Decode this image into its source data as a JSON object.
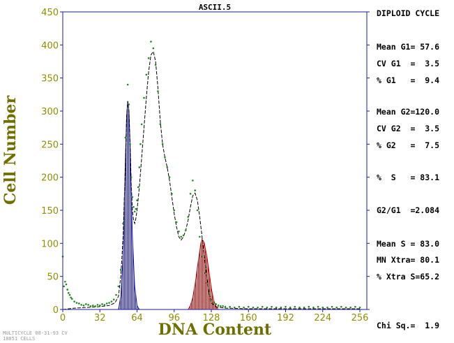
{
  "chart_data": {
    "type": "histogram",
    "title": "ASCII.5",
    "xlabel": "DNA Content",
    "ylabel": "Cell Number",
    "xlim": [
      0,
      262
    ],
    "ylim": [
      0,
      450
    ],
    "x_ticks": [
      0,
      32,
      64,
      96,
      128,
      160,
      192,
      224,
      256
    ],
    "y_ticks": [
      0,
      50,
      100,
      150,
      200,
      250,
      300,
      350,
      400,
      450
    ],
    "grid": false,
    "colors": {
      "axis": "#1c1c9a",
      "tick_label": "#8f8f00",
      "axis_label": "#6f6f00",
      "data_points": "#208a20",
      "fit_line": "#000000",
      "g1_peak": "#2020a0",
      "g2_peak": "#b01010"
    },
    "series": [
      {
        "kind": "scatter",
        "x": [
          0,
          1,
          2,
          3,
          4,
          5,
          6,
          7,
          8,
          10,
          12,
          14,
          16,
          18,
          20,
          22,
          24,
          26,
          28,
          30,
          32,
          34,
          36,
          38,
          40,
          42,
          44,
          46,
          48,
          50,
          52,
          54,
          56,
          57,
          58,
          59,
          60,
          61,
          62,
          63,
          64,
          65,
          66,
          67,
          68,
          70,
          72,
          74,
          76,
          78,
          80,
          82,
          84,
          86,
          88,
          90,
          92,
          94,
          96,
          98,
          100,
          102,
          104,
          106,
          108,
          110,
          112,
          114,
          116,
          118,
          120,
          122,
          124,
          126,
          128,
          130,
          132,
          134,
          136,
          138,
          140,
          144,
          148,
          152,
          156,
          160,
          164,
          168,
          172,
          176,
          180,
          184,
          188,
          192,
          196,
          200,
          204,
          208,
          212,
          216,
          220,
          224,
          228,
          232,
          236,
          240,
          244,
          248,
          252,
          256
        ],
        "y": [
          80,
          35,
          42,
          38,
          30,
          25,
          22,
          18,
          16,
          12,
          10,
          9,
          7,
          6,
          8,
          7,
          5,
          6,
          5,
          7,
          6,
          8,
          7,
          9,
          10,
          12,
          15,
          22,
          35,
          60,
          130,
          260,
          340,
          310,
          250,
          200,
          170,
          155,
          148,
          152,
          165,
          185,
          215,
          250,
          280,
          320,
          355,
          380,
          405,
          395,
          370,
          330,
          280,
          250,
          230,
          215,
          200,
          175,
          150,
          132,
          118,
          110,
          112,
          120,
          140,
          175,
          195,
          180,
          150,
          110,
          80,
          55,
          40,
          25,
          15,
          10,
          8,
          6,
          5,
          5,
          4,
          4,
          3,
          4,
          3,
          4,
          3,
          3,
          4,
          3,
          4,
          3,
          3,
          4,
          3,
          4,
          3,
          3,
          4,
          3,
          4,
          3,
          3,
          4,
          3,
          4,
          3,
          3,
          4,
          3
        ]
      },
      {
        "kind": "fit-line",
        "x": [
          0,
          10,
          20,
          30,
          40,
          45,
          48,
          50,
          52,
          54,
          55,
          56,
          57,
          58,
          59,
          60,
          61,
          62,
          63,
          64,
          66,
          68,
          70,
          72,
          74,
          76,
          78,
          80,
          82,
          84,
          86,
          88,
          90,
          92,
          94,
          96,
          98,
          100,
          102,
          104,
          106,
          108,
          110,
          112,
          114,
          116,
          118,
          120,
          122,
          124,
          126,
          128,
          132,
          140,
          160,
          192,
          224,
          256
        ],
        "y": [
          0,
          2,
          3,
          4,
          6,
          10,
          20,
          50,
          110,
          220,
          290,
          315,
          300,
          250,
          190,
          150,
          135,
          130,
          138,
          150,
          185,
          230,
          275,
          320,
          360,
          385,
          390,
          375,
          335,
          285,
          250,
          230,
          215,
          195,
          170,
          145,
          125,
          110,
          105,
          110,
          120,
          135,
          155,
          172,
          176,
          165,
          140,
          110,
          80,
          50,
          25,
          10,
          4,
          2,
          1,
          1,
          1,
          1
        ]
      },
      {
        "kind": "g1-peak-fill",
        "x": [
          48,
          50,
          52,
          53,
          54,
          55,
          56,
          57,
          58,
          59,
          60,
          62,
          64,
          66
        ],
        "y": [
          0,
          20,
          80,
          160,
          230,
          290,
          315,
          300,
          250,
          180,
          110,
          35,
          6,
          0
        ]
      },
      {
        "kind": "g2-peak-fill",
        "x": [
          108,
          110,
          112,
          114,
          116,
          118,
          119,
          120,
          121,
          122,
          124,
          126,
          128,
          130,
          132,
          134
        ],
        "y": [
          0,
          6,
          18,
          38,
          64,
          88,
          100,
          106,
          104,
          100,
          82,
          58,
          32,
          14,
          5,
          0
        ]
      }
    ]
  },
  "stats_panel": {
    "heading": "DIPLOID CYCLE",
    "lines": [
      "Mean G1= 57.6",
      "CV G1  =  3.5",
      "% G1   =  9.4",
      "Mean G2=120.0",
      "CV G2  =  3.5",
      "% G2   =  7.5",
      "%  S   = 83.1",
      "G2/G1  =2.084",
      "Mean S = 83.0",
      "MN Xtra= 80.1",
      "% Xtra S=65.2",
      "Chi Sq.=  1.9"
    ]
  },
  "footer": {
    "line1": "MULTICYCLE 08-31-93 CV",
    "line2": "18851 CELLS"
  }
}
